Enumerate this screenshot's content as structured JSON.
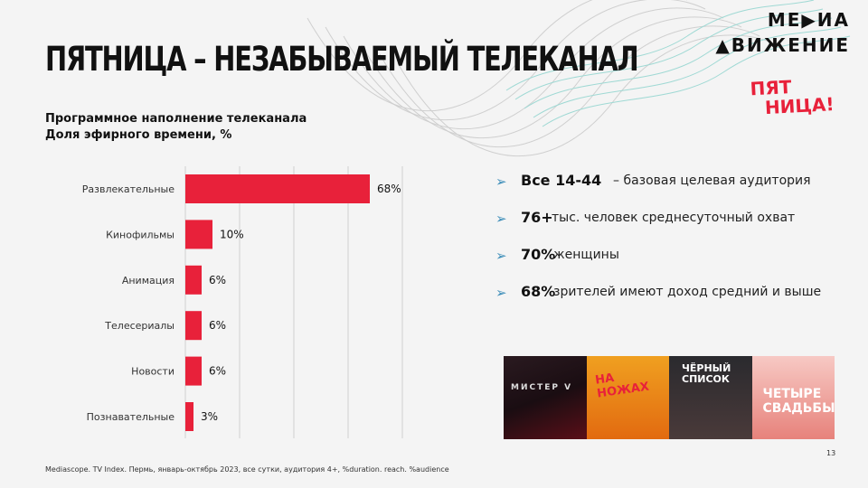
{
  "slide": {
    "title": "ПЯТНИЦА – НЕЗАБЫВАЕМЫЙ ТЕЛЕКАНАЛ",
    "logo_line1": "МЕ▶ИА",
    "logo_line2": "▲ВИЖЕНИЕ",
    "channel_logo_line1": "ПЯТ",
    "channel_logo_line2": "НИЦА!",
    "subtitle_line1": "Программное наполнение телеканала",
    "subtitle_line2": "Доля эфирного времени, %",
    "source": "Mediascope. TV Index. Пермь, январь-октябрь 2023, все сутки, аудитория 4+, %duration. reach. %audience",
    "page_number": "13"
  },
  "bullets": [
    {
      "strong": "Все 14-44",
      "rest": " – базовая целевая аудитория"
    },
    {
      "strong": "76+",
      "rest": " тыс. человек среднесуточный охват"
    },
    {
      "strong": "70%",
      "rest": "  женщины"
    },
    {
      "strong": "68%",
      "rest": "  зрителей имеют доход средний и выше"
    }
  ],
  "thumbnails": [
    {
      "label": "МИСТЕР V"
    },
    {
      "label": "НА НОЖАХ"
    },
    {
      "label": "ЧЁРНЫЙ СПИСОК"
    },
    {
      "label": "ЧЕТЫРЕ СВАДЬБЫ"
    }
  ],
  "colors": {
    "bar": "#e8213a",
    "grid": "#cfcfcf",
    "arrow": "#3d8eb9",
    "brand_red": "#e8213a"
  },
  "chart_data": {
    "type": "bar",
    "orientation": "horizontal",
    "categories": [
      "Развлекательные",
      "Кинофильмы",
      "Анимация",
      "Телесериалы",
      "Новости",
      "Познавательные"
    ],
    "values": [
      68,
      10,
      6,
      6,
      6,
      3
    ],
    "value_labels": [
      "68%",
      "10%",
      "6%",
      "6%",
      "6%",
      "3%"
    ],
    "xlim": [
      0,
      80
    ],
    "grid": true
  }
}
